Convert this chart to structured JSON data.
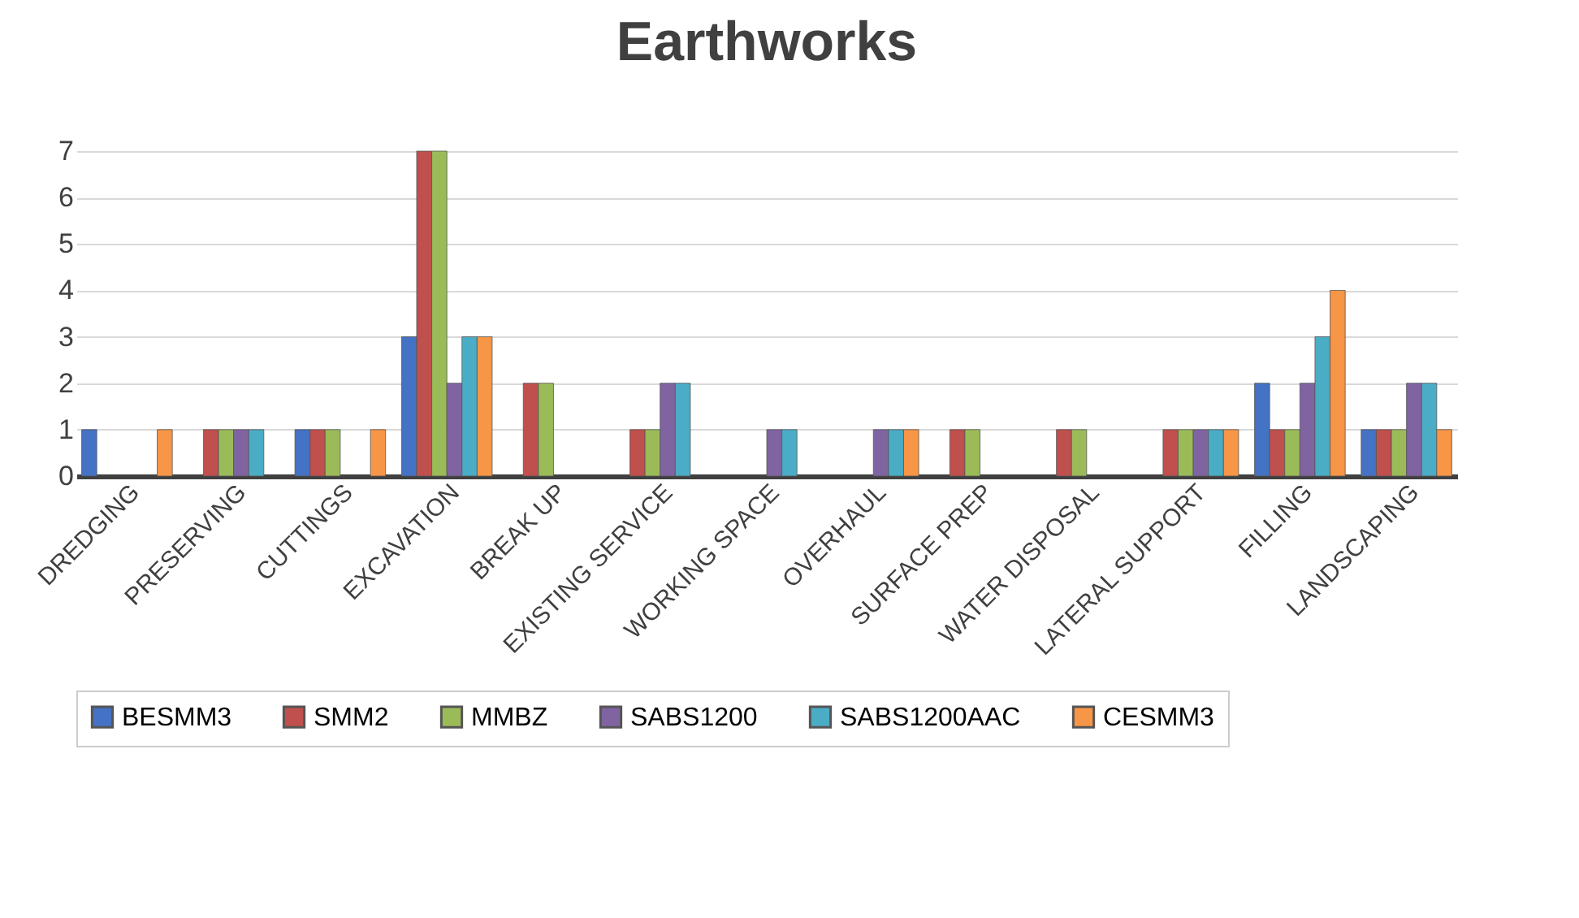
{
  "chart_data": {
    "type": "bar",
    "title": "Earthworks",
    "categories": [
      "DREDGING",
      "PRESERVING",
      "CUTTINGS",
      "EXCAVATION",
      "BREAK UP",
      "EXISTING SERVICE",
      "WORKING SPACE",
      "OVERHAUL",
      "SURFACE PREP",
      "WATER DISPOSAL",
      "LATERAL SUPPORT",
      "FILLING",
      "LANDSCAPING"
    ],
    "series": [
      {
        "name": "BESMM3",
        "color": "#4472c4",
        "values": [
          1,
          null,
          1,
          3,
          null,
          null,
          null,
          null,
          null,
          null,
          null,
          2,
          1
        ]
      },
      {
        "name": "SMM2",
        "color": "#c0504d",
        "values": [
          null,
          1,
          1,
          7,
          2,
          1,
          null,
          null,
          1,
          1,
          1,
          1,
          1
        ]
      },
      {
        "name": "MMBZ",
        "color": "#9bbb59",
        "values": [
          null,
          1,
          1,
          7,
          2,
          1,
          null,
          null,
          1,
          1,
          1,
          1,
          1
        ]
      },
      {
        "name": "SABS1200",
        "color": "#8064a2",
        "values": [
          null,
          1,
          null,
          2,
          null,
          2,
          1,
          1,
          null,
          null,
          1,
          2,
          2
        ]
      },
      {
        "name": "SABS1200AAC",
        "color": "#4bacc6",
        "values": [
          null,
          1,
          null,
          3,
          null,
          2,
          1,
          1,
          null,
          null,
          1,
          3,
          2
        ]
      },
      {
        "name": "CESMM3",
        "color": "#f79646",
        "values": [
          1,
          null,
          1,
          3,
          null,
          null,
          null,
          1,
          null,
          null,
          1,
          4,
          1
        ]
      }
    ],
    "ylim": [
      0,
      7
    ],
    "yticks": [
      0,
      1,
      2,
      3,
      4,
      5,
      6,
      7
    ],
    "grid": "y",
    "legend": "bottom"
  }
}
